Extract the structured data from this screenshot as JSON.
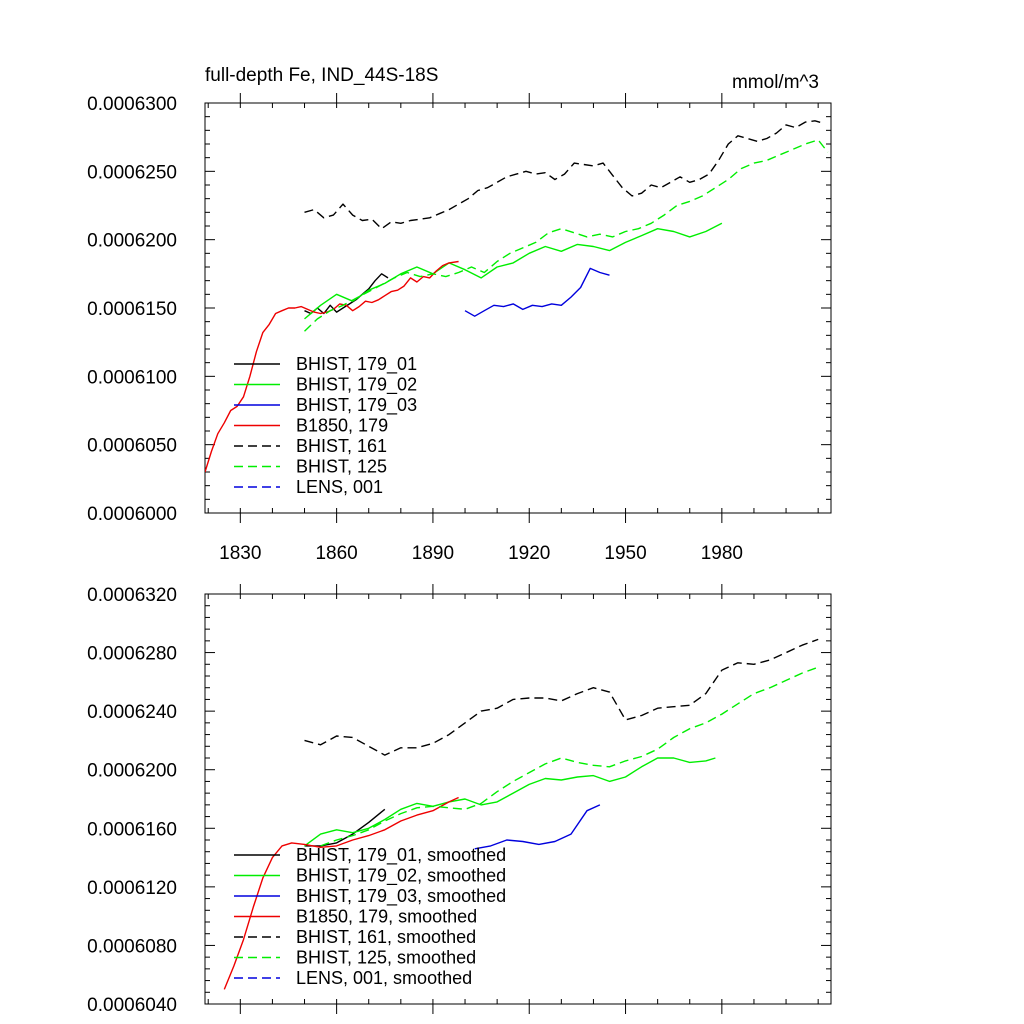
{
  "chart_data": [
    {
      "type": "line",
      "title": "full-depth Fe, IND_44S-18S",
      "units": "mmol/m^3",
      "xlim": [
        1819,
        2014
      ],
      "ylim": [
        0.0006,
        0.00063
      ],
      "xticks": [
        1830,
        1860,
        1890,
        1920,
        1950,
        1980
      ],
      "yticks": [
        0.0006,
        0.000605,
        0.00061,
        0.000615,
        0.00062,
        0.000625,
        0.00063
      ],
      "ytick_labels": [
        "0.0006000",
        "0.0006050",
        "0.0006100",
        "0.0006150",
        "0.0006200",
        "0.0006250",
        "0.0006300"
      ],
      "show_xtick_labels": true,
      "grid": false,
      "legend_position": "bottom-left",
      "series": [
        {
          "name": "BHIST, 179_01",
          "color": "#000000",
          "dash": "solid",
          "x": [
            1850,
            1852,
            1854,
            1856,
            1858,
            1860,
            1862,
            1864,
            1866,
            1868,
            1870,
            1872,
            1874,
            1876
          ],
          "y": [
            0.0006148,
            0.0006146,
            0.000615,
            0.0006146,
            0.0006152,
            0.0006147,
            0.000615,
            0.0006153,
            0.0006156,
            0.000616,
            0.0006164,
            0.000617,
            0.0006175,
            0.0006172
          ]
        },
        {
          "name": "BHIST, 179_02",
          "color": "#00ee00",
          "dash": "solid",
          "x": [
            1850,
            1855,
            1860,
            1865,
            1870,
            1875,
            1880,
            1885,
            1890,
            1895,
            1900,
            1905,
            1910,
            1915,
            1920,
            1925,
            1930,
            1935,
            1940,
            1945,
            1950,
            1955,
            1960,
            1965,
            1970,
            1975,
            1980
          ],
          "y": [
            0.0006142,
            0.0006152,
            0.000616,
            0.0006155,
            0.0006163,
            0.0006168,
            0.0006175,
            0.000618,
            0.0006175,
            0.0006183,
            0.0006178,
            0.0006172,
            0.000618,
            0.0006183,
            0.000619,
            0.0006195,
            0.00061915,
            0.00061965,
            0.0006195,
            0.0006192,
            0.0006198,
            0.0006203,
            0.0006208,
            0.0006206,
            0.0006202,
            0.0006206,
            0.0006212
          ]
        },
        {
          "name": "BHIST, 179_03",
          "color": "#0000dd",
          "dash": "solid",
          "x": [
            1900,
            1903,
            1906,
            1909,
            1912,
            1915,
            1918,
            1921,
            1924,
            1927,
            1930,
            1933,
            1936,
            1939,
            1942,
            1945
          ],
          "y": [
            0.0006148,
            0.0006144,
            0.0006148,
            0.0006152,
            0.0006151,
            0.0006153,
            0.0006149,
            0.0006152,
            0.0006151,
            0.0006153,
            0.0006152,
            0.0006158,
            0.0006165,
            0.0006179,
            0.0006176,
            0.0006174
          ]
        },
        {
          "name": "B1850, 179",
          "color": "#ee0000",
          "dash": "solid",
          "x": [
            1819,
            1821,
            1823,
            1825,
            1827,
            1829,
            1831,
            1833,
            1835,
            1837,
            1839,
            1841,
            1843,
            1845,
            1847,
            1849,
            1851,
            1853,
            1855,
            1857,
            1859,
            1861,
            1863,
            1865,
            1867,
            1869,
            1871,
            1873,
            1875,
            1877,
            1879,
            1881,
            1883,
            1885,
            1887,
            1889,
            1891,
            1893,
            1895,
            1898
          ],
          "y": [
            0.000603,
            0.0006045,
            0.0006058,
            0.0006066,
            0.0006075,
            0.0006078,
            0.0006085,
            0.00061,
            0.0006118,
            0.0006132,
            0.0006138,
            0.0006146,
            0.0006148,
            0.000615,
            0.000615,
            0.0006151,
            0.0006149,
            0.0006147,
            0.0006146,
            0.0006147,
            0.0006149,
            0.0006153,
            0.0006152,
            0.0006148,
            0.0006151,
            0.0006155,
            0.0006154,
            0.0006156,
            0.0006159,
            0.0006162,
            0.0006163,
            0.0006166,
            0.0006172,
            0.0006169,
            0.0006173,
            0.0006172,
            0.0006177,
            0.0006181,
            0.0006183,
            0.0006184
          ]
        },
        {
          "name": "BHIST, 161",
          "color": "#000000",
          "dash": "dashed",
          "x": [
            1850,
            1853,
            1856,
            1859,
            1862,
            1865,
            1868,
            1871,
            1874,
            1877,
            1880,
            1883,
            1886,
            1889,
            1892,
            1895,
            1898,
            1901,
            1904,
            1907,
            1910,
            1913,
            1916,
            1919,
            1922,
            1925,
            1928,
            1931,
            1934,
            1937,
            1940,
            1943,
            1946,
            1949,
            1952,
            1955,
            1958,
            1961,
            1964,
            1967,
            1970,
            1973,
            1976,
            1979,
            1982,
            1985,
            1988,
            1991,
            1994,
            1997,
            2000,
            2003,
            2006,
            2009,
            2012
          ],
          "y": [
            0.000622,
            0.0006222,
            0.0006216,
            0.0006218,
            0.0006226,
            0.0006218,
            0.0006214,
            0.0006215,
            0.0006208,
            0.0006213,
            0.0006212,
            0.0006214,
            0.0006215,
            0.0006216,
            0.0006219,
            0.0006222,
            0.0006226,
            0.000623,
            0.0006236,
            0.0006238,
            0.0006242,
            0.0006246,
            0.0006248,
            0.000625,
            0.0006248,
            0.0006249,
            0.0006244,
            0.0006248,
            0.0006256,
            0.0006255,
            0.0006254,
            0.0006256,
            0.0006247,
            0.0006238,
            0.0006232,
            0.0006234,
            0.000624,
            0.0006238,
            0.0006242,
            0.0006246,
            0.0006242,
            0.0006244,
            0.0006248,
            0.0006258,
            0.000627,
            0.0006276,
            0.0006274,
            0.0006272,
            0.0006274,
            0.0006278,
            0.0006284,
            0.0006282,
            0.0006286,
            0.0006287,
            0.0006285
          ]
        },
        {
          "name": "BHIST, 125",
          "color": "#00ee00",
          "dash": "dashed",
          "x": [
            1850,
            1854,
            1858,
            1862,
            1866,
            1870,
            1874,
            1878,
            1882,
            1886,
            1890,
            1894,
            1898,
            1902,
            1906,
            1910,
            1914,
            1918,
            1922,
            1926,
            1930,
            1934,
            1938,
            1942,
            1946,
            1950,
            1954,
            1958,
            1962,
            1966,
            1970,
            1974,
            1978,
            1982,
            1986,
            1990,
            1994,
            1998,
            2002,
            2006,
            2010,
            2013
          ],
          "y": [
            0.0006133,
            0.0006142,
            0.0006148,
            0.0006152,
            0.0006157,
            0.0006162,
            0.0006167,
            0.0006172,
            0.0006176,
            0.0006173,
            0.0006175,
            0.0006173,
            0.0006176,
            0.000618,
            0.0006176,
            0.0006184,
            0.000619,
            0.0006194,
            0.0006198,
            0.0006205,
            0.0006208,
            0.0006205,
            0.0006202,
            0.0006204,
            0.0006202,
            0.0006206,
            0.0006208,
            0.0006212,
            0.0006218,
            0.0006225,
            0.0006228,
            0.0006232,
            0.0006238,
            0.0006244,
            0.0006252,
            0.0006256,
            0.0006258,
            0.0006262,
            0.0006266,
            0.000627,
            0.0006273,
            0.0006264
          ]
        },
        {
          "name": "LENS, 001",
          "color": "#0000dd",
          "dash": "dashed",
          "x": [],
          "y": []
        }
      ]
    },
    {
      "type": "line",
      "title": "",
      "xlim": [
        1819,
        2014
      ],
      "ylim": [
        0.000604,
        0.000632
      ],
      "xticks": [
        1830,
        1860,
        1890,
        1920,
        1950,
        1980
      ],
      "yticks": [
        0.000604,
        0.000608,
        0.000612,
        0.000616,
        0.00062,
        0.000624,
        0.000628,
        0.000632
      ],
      "ytick_labels": [
        "0.0006040",
        "0.0006080",
        "0.0006120",
        "0.0006160",
        "0.0006200",
        "0.0006240",
        "0.0006280",
        "0.0006320"
      ],
      "show_xtick_labels": false,
      "grid": false,
      "legend_position": "bottom-left",
      "series": [
        {
          "name": "BHIST, 179_01, smoothed",
          "color": "#000000",
          "dash": "solid",
          "x": [
            1850,
            1855,
            1860,
            1865,
            1870,
            1875
          ],
          "y": [
            0.0006148,
            0.0006148,
            0.000615,
            0.0006156,
            0.0006164,
            0.0006173
          ]
        },
        {
          "name": "BHIST, 179_02, smoothed",
          "color": "#00ee00",
          "dash": "solid",
          "x": [
            1850,
            1855,
            1860,
            1865,
            1870,
            1875,
            1880,
            1885,
            1890,
            1895,
            1900,
            1905,
            1910,
            1915,
            1920,
            1925,
            1930,
            1935,
            1940,
            1945,
            1950,
            1955,
            1960,
            1965,
            1970,
            1975,
            1978
          ],
          "y": [
            0.0006148,
            0.0006156,
            0.0006159,
            0.0006157,
            0.000616,
            0.0006166,
            0.0006173,
            0.0006177,
            0.0006175,
            0.0006178,
            0.000618,
            0.0006176,
            0.0006178,
            0.0006184,
            0.000619,
            0.0006194,
            0.0006193,
            0.0006195,
            0.0006196,
            0.0006192,
            0.0006195,
            0.0006202,
            0.0006208,
            0.0006208,
            0.0006205,
            0.0006206,
            0.0006208
          ]
        },
        {
          "name": "BHIST, 179_03, smoothed",
          "color": "#0000dd",
          "dash": "solid",
          "x": [
            1903,
            1908,
            1913,
            1918,
            1923,
            1928,
            1933,
            1938,
            1942
          ],
          "y": [
            0.0006146,
            0.0006148,
            0.0006152,
            0.0006151,
            0.0006149,
            0.0006151,
            0.0006156,
            0.0006172,
            0.0006176
          ]
        },
        {
          "name": "B1850, 179, smoothed",
          "color": "#ee0000",
          "dash": "solid",
          "x": [
            1825,
            1828,
            1831,
            1834,
            1837,
            1840,
            1843,
            1846,
            1850,
            1855,
            1860,
            1865,
            1870,
            1875,
            1880,
            1885,
            1890,
            1895,
            1898
          ],
          "y": [
            0.000605,
            0.0006066,
            0.0006084,
            0.0006106,
            0.0006126,
            0.000614,
            0.0006148,
            0.000615,
            0.0006149,
            0.0006147,
            0.0006148,
            0.0006152,
            0.0006155,
            0.0006159,
            0.0006165,
            0.0006169,
            0.0006172,
            0.0006178,
            0.0006181
          ]
        },
        {
          "name": "BHIST, 161, smoothed",
          "color": "#000000",
          "dash": "dashed",
          "x": [
            1850,
            1855,
            1860,
            1865,
            1870,
            1875,
            1880,
            1885,
            1890,
            1895,
            1900,
            1905,
            1910,
            1915,
            1920,
            1925,
            1930,
            1935,
            1940,
            1945,
            1950,
            1955,
            1960,
            1965,
            1970,
            1975,
            1980,
            1985,
            1990,
            1995,
            2000,
            2005,
            2010
          ],
          "y": [
            0.000622,
            0.0006217,
            0.0006223,
            0.0006222,
            0.0006216,
            0.000621,
            0.0006215,
            0.0006215,
            0.0006218,
            0.0006224,
            0.0006232,
            0.000624,
            0.0006242,
            0.0006248,
            0.0006249,
            0.0006249,
            0.0006247,
            0.0006252,
            0.0006256,
            0.0006253,
            0.0006234,
            0.0006237,
            0.0006242,
            0.0006243,
            0.0006244,
            0.0006252,
            0.0006268,
            0.0006273,
            0.0006272,
            0.0006275,
            0.000628,
            0.0006285,
            0.0006289
          ]
        },
        {
          "name": "BHIST, 125, smoothed",
          "color": "#00ee00",
          "dash": "dashed",
          "x": [
            1855,
            1860,
            1865,
            1870,
            1875,
            1880,
            1885,
            1890,
            1895,
            1900,
            1905,
            1910,
            1915,
            1920,
            1925,
            1930,
            1935,
            1940,
            1945,
            1950,
            1955,
            1960,
            1965,
            1970,
            1975,
            1980,
            1985,
            1990,
            1995,
            2000,
            2005,
            2010
          ],
          "y": [
            0.0006148,
            0.0006152,
            0.0006155,
            0.0006159,
            0.0006165,
            0.000617,
            0.0006174,
            0.0006175,
            0.0006174,
            0.0006173,
            0.0006177,
            0.0006185,
            0.0006192,
            0.0006198,
            0.0006204,
            0.0006208,
            0.0006205,
            0.0006203,
            0.0006202,
            0.0006206,
            0.0006209,
            0.0006214,
            0.0006222,
            0.0006228,
            0.0006232,
            0.0006238,
            0.0006245,
            0.0006252,
            0.0006256,
            0.0006261,
            0.0006266,
            0.000627
          ]
        },
        {
          "name": "LENS, 001, smoothed",
          "color": "#0000dd",
          "dash": "dashed",
          "x": [],
          "y": []
        }
      ]
    }
  ]
}
